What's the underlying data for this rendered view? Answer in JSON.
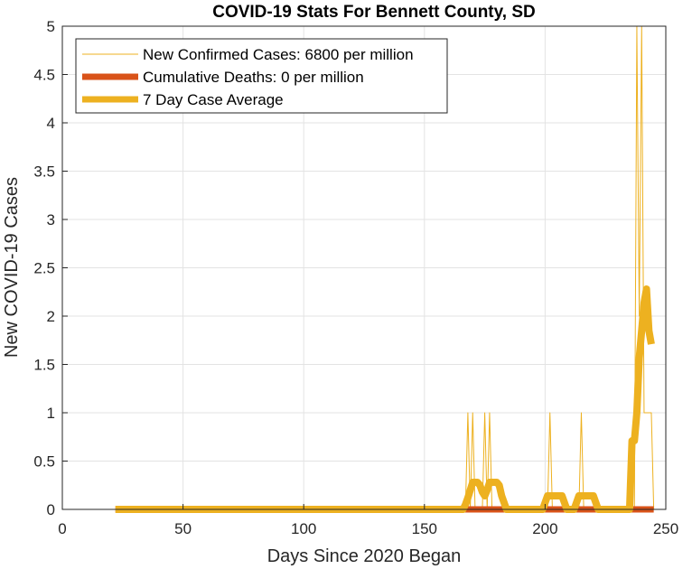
{
  "chart_data": {
    "type": "line",
    "title": "COVID-19 Stats For Bennett County, SD",
    "xlabel": "Days Since 2020 Began",
    "ylabel": "New COVID-19 Cases",
    "xlim": [
      0,
      250
    ],
    "ylim": [
      0,
      5
    ],
    "xticks": [
      0,
      50,
      100,
      150,
      200,
      250
    ],
    "yticks": [
      0,
      0.5,
      1,
      1.5,
      2,
      2.5,
      3,
      3.5,
      4,
      4.5,
      5
    ],
    "ytick_labels": [
      "0",
      "0.5",
      "1",
      "1.5",
      "2",
      "2.5",
      "3",
      "3.5",
      "4",
      "4.5",
      "5"
    ],
    "grid": true,
    "legend_position": "top-left",
    "series": [
      {
        "name": "New Confirmed Cases: 6800 per million",
        "color": "#EDB120",
        "style": "thin",
        "x": [
          22,
          167,
          168,
          169,
          170,
          171,
          172,
          173,
          174,
          175,
          176,
          177,
          178,
          179,
          200,
          201,
          202,
          203,
          213,
          214,
          215,
          216,
          236,
          237,
          238,
          239,
          240,
          241,
          242,
          243,
          244,
          245
        ],
        "y": [
          0,
          0,
          1,
          0,
          1,
          0,
          0,
          0,
          0,
          1,
          0,
          1,
          0,
          0,
          0,
          0,
          1,
          0,
          0,
          0,
          1,
          0,
          0,
          0,
          5,
          2,
          5,
          1,
          1,
          1,
          1,
          0
        ]
      },
      {
        "name": "Cumulative Deaths: 0 per million",
        "color": "#D95319",
        "style": "thick",
        "x": [
          22,
          245
        ],
        "y": [
          0,
          0
        ]
      },
      {
        "name": "7 Day Case Average",
        "color": "#EDB120",
        "style": "thickest",
        "x": [
          22,
          166,
          167,
          168,
          169,
          170,
          171,
          172,
          173,
          174,
          175,
          176,
          177,
          178,
          179,
          180,
          181,
          182,
          183,
          184,
          199,
          200,
          201,
          202,
          203,
          204,
          205,
          206,
          207,
          208,
          209,
          212,
          213,
          214,
          215,
          216,
          217,
          218,
          219,
          220,
          221,
          222,
          235,
          236,
          237,
          238,
          239,
          240,
          241,
          242,
          243,
          244
        ],
        "y": [
          0,
          0,
          0.05,
          0.12,
          0.2,
          0.28,
          0.28,
          0.28,
          0.25,
          0.18,
          0.14,
          0.2,
          0.28,
          0.28,
          0.28,
          0.28,
          0.25,
          0.14,
          0.07,
          0,
          0,
          0.07,
          0.14,
          0.14,
          0.14,
          0.14,
          0.14,
          0.14,
          0.14,
          0.07,
          0,
          0,
          0.07,
          0.14,
          0.14,
          0.14,
          0.14,
          0.14,
          0.14,
          0.14,
          0.07,
          0,
          0,
          0.71,
          0.71,
          1.0,
          1.57,
          1.85,
          2.14,
          2.28,
          1.85,
          1.71
        ]
      }
    ]
  }
}
